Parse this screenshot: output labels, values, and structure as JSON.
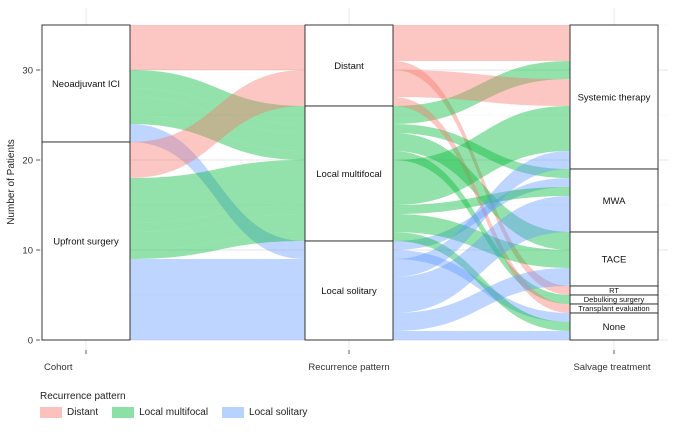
{
  "chart_data": {
    "type": "alluvial",
    "ylabel": "Number of Patients",
    "yticks": [
      0,
      10,
      20,
      30
    ],
    "ylim": [
      0,
      35
    ],
    "grid": true,
    "axes": [
      "Cohort",
      "Recurrence pattern",
      "Salvage treatment"
    ],
    "strata": [
      [
        {
          "label": "Neoadjuvant ICI",
          "count": 13
        },
        {
          "label": "Upfront surgery",
          "count": 22
        }
      ],
      [
        {
          "label": "Distant",
          "count": 9
        },
        {
          "label": "Local multifocal",
          "count": 15
        },
        {
          "label": "Local solitary",
          "count": 11
        }
      ],
      [
        {
          "label": "Systemic therapy",
          "count": 16
        },
        {
          "label": "MWA",
          "count": 7
        },
        {
          "label": "TACE",
          "count": 6
        },
        {
          "label": "RT",
          "count": 1
        },
        {
          "label": "Debulking surgery",
          "count": 1
        },
        {
          "label": "Transplant evaluation",
          "count": 1
        },
        {
          "label": "None",
          "count": 3
        }
      ]
    ],
    "flows": [
      {
        "path": [
          "Neoadjuvant ICI",
          "Distant",
          "Systemic therapy"
        ],
        "group": "Distant",
        "count": 4
      },
      {
        "path": [
          "Neoadjuvant ICI",
          "Distant",
          "RT"
        ],
        "group": "Distant",
        "count": 1
      },
      {
        "path": [
          "Neoadjuvant ICI",
          "Local multifocal",
          "Systemic therapy"
        ],
        "group": "Local multifocal",
        "count": 2
      },
      {
        "path": [
          "Neoadjuvant ICI",
          "Local multifocal",
          "MWA"
        ],
        "group": "Local multifocal",
        "count": 1
      },
      {
        "path": [
          "Neoadjuvant ICI",
          "Local multifocal",
          "TACE"
        ],
        "group": "Local multifocal",
        "count": 2
      },
      {
        "path": [
          "Neoadjuvant ICI",
          "Local multifocal",
          "Debulking surgery"
        ],
        "group": "Local multifocal",
        "count": 1
      },
      {
        "path": [
          "Neoadjuvant ICI",
          "Local solitary",
          "MWA"
        ],
        "group": "Local solitary",
        "count": 1
      },
      {
        "path": [
          "Neoadjuvant ICI",
          "Local solitary",
          "None"
        ],
        "group": "Local solitary",
        "count": 1
      },
      {
        "path": [
          "Upfront surgery",
          "Distant",
          "Systemic therapy"
        ],
        "group": "Distant",
        "count": 3
      },
      {
        "path": [
          "Upfront surgery",
          "Distant",
          "Transplant evaluation"
        ],
        "group": "Distant",
        "count": 1
      },
      {
        "path": [
          "Upfront surgery",
          "Local multifocal",
          "Systemic therapy"
        ],
        "group": "Local multifocal",
        "count": 5
      },
      {
        "path": [
          "Upfront surgery",
          "Local multifocal",
          "MWA"
        ],
        "group": "Local multifocal",
        "count": 1
      },
      {
        "path": [
          "Upfront surgery",
          "Local multifocal",
          "TACE"
        ],
        "group": "Local multifocal",
        "count": 2
      },
      {
        "path": [
          "Upfront surgery",
          "Local multifocal",
          "None"
        ],
        "group": "Local multifocal",
        "count": 1
      },
      {
        "path": [
          "Upfront surgery",
          "Local solitary",
          "Systemic therapy"
        ],
        "group": "Local solitary",
        "count": 2
      },
      {
        "path": [
          "Upfront surgery",
          "Local solitary",
          "MWA"
        ],
        "group": "Local solitary",
        "count": 4
      },
      {
        "path": [
          "Upfront surgery",
          "Local solitary",
          "TACE"
        ],
        "group": "Local solitary",
        "count": 2
      },
      {
        "path": [
          "Upfront surgery",
          "Local solitary",
          "None"
        ],
        "group": "Local solitary",
        "count": 1
      }
    ],
    "legend": {
      "title": "Recurrence pattern",
      "position": "bottom-left",
      "items": [
        {
          "label": "Distant",
          "color": "#F8766D"
        },
        {
          "label": "Local multifocal",
          "color": "#00BA38"
        },
        {
          "label": "Local solitary",
          "color": "#619CFF"
        }
      ]
    }
  }
}
